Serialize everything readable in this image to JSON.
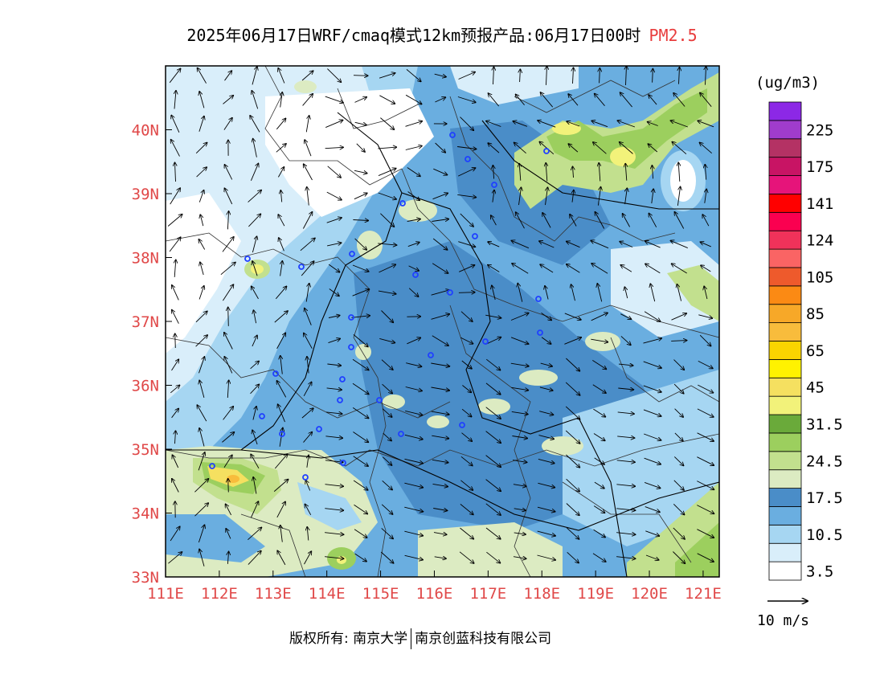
{
  "title": {
    "text": "2025年06月17日WRF/cmaq模式12km预报产品:06月17日00时",
    "highlight": "PM2.5"
  },
  "map": {
    "lon_range": [
      111,
      121.3
    ],
    "lat_range": [
      33,
      41
    ],
    "x_ticks": [
      "111E",
      "112E",
      "113E",
      "114E",
      "115E",
      "116E",
      "117E",
      "118E",
      "119E",
      "120E",
      "121E"
    ],
    "y_ticks": [
      "33N",
      "34N",
      "35N",
      "36N",
      "37N",
      "38N",
      "39N",
      "40N"
    ]
  },
  "legend": {
    "unit": "(ug/m3)",
    "bins": [
      {
        "color": "#ffffff",
        "label": "3.5"
      },
      {
        "color": "#d9eefa",
        "label": ""
      },
      {
        "color": "#a6d6f2",
        "label": "10.5"
      },
      {
        "color": "#6aaee0",
        "label": ""
      },
      {
        "color": "#4a8dc8",
        "label": "17.5"
      },
      {
        "color": "#dcebc2",
        "label": ""
      },
      {
        "color": "#c2e08e",
        "label": "24.5"
      },
      {
        "color": "#9ccf5e",
        "label": ""
      },
      {
        "color": "#6aaa3a",
        "label": "31.5"
      },
      {
        "color": "#f2f27a",
        "label": ""
      },
      {
        "color": "#f5e060",
        "label": "45"
      },
      {
        "color": "#fff200",
        "label": ""
      },
      {
        "color": "#fad400",
        "label": "65"
      },
      {
        "color": "#f8bc3c",
        "label": ""
      },
      {
        "color": "#f7a828",
        "label": "85"
      },
      {
        "color": "#fb8a14",
        "label": ""
      },
      {
        "color": "#ee5a2c",
        "label": "105"
      },
      {
        "color": "#fa6464",
        "label": ""
      },
      {
        "color": "#f0325a",
        "label": "124"
      },
      {
        "color": "#fa0050",
        "label": ""
      },
      {
        "color": "#ff0000",
        "label": "141"
      },
      {
        "color": "#e6147a",
        "label": ""
      },
      {
        "color": "#c81464",
        "label": "175"
      },
      {
        "color": "#b43264",
        "label": ""
      },
      {
        "color": "#a03ccc",
        "label": "225"
      },
      {
        "color": "#8c28e6",
        "label": ""
      }
    ],
    "reference_vector": "10 m/s"
  },
  "colors": {
    "axis": "#000000",
    "tick_text": "#e04848",
    "station": "#2040ff"
  },
  "footer": {
    "copyright_prefix": "版权所有: 南京大学",
    "company": "南京创蓝科技有限公司"
  }
}
